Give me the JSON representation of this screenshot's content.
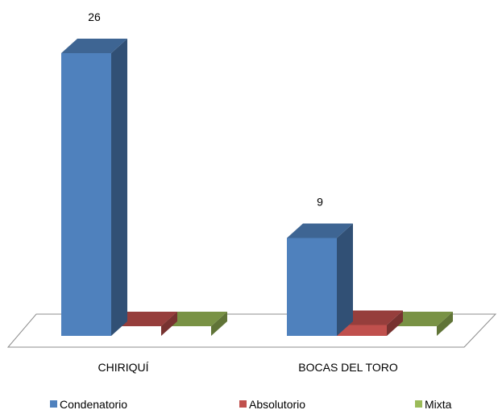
{
  "chart_data": {
    "type": "bar",
    "three_d": true,
    "categories": [
      "CHIRIQUÍ",
      "BOCAS DEL TORO"
    ],
    "series": [
      {
        "name": "Condenatorio",
        "values": [
          26,
          9
        ],
        "color": "#4F81BD",
        "show_label": true
      },
      {
        "name": "Absolutorio",
        "values": [
          0,
          1
        ],
        "color": "#C0504D",
        "show_label": false
      },
      {
        "name": "Mixta",
        "values": [
          0,
          0
        ],
        "color": "#9BBB59",
        "show_label": false
      }
    ],
    "data_labels": [
      "26",
      "9"
    ],
    "legend_position": "bottom",
    "grid": false,
    "ylim": [
      0,
      26
    ]
  }
}
